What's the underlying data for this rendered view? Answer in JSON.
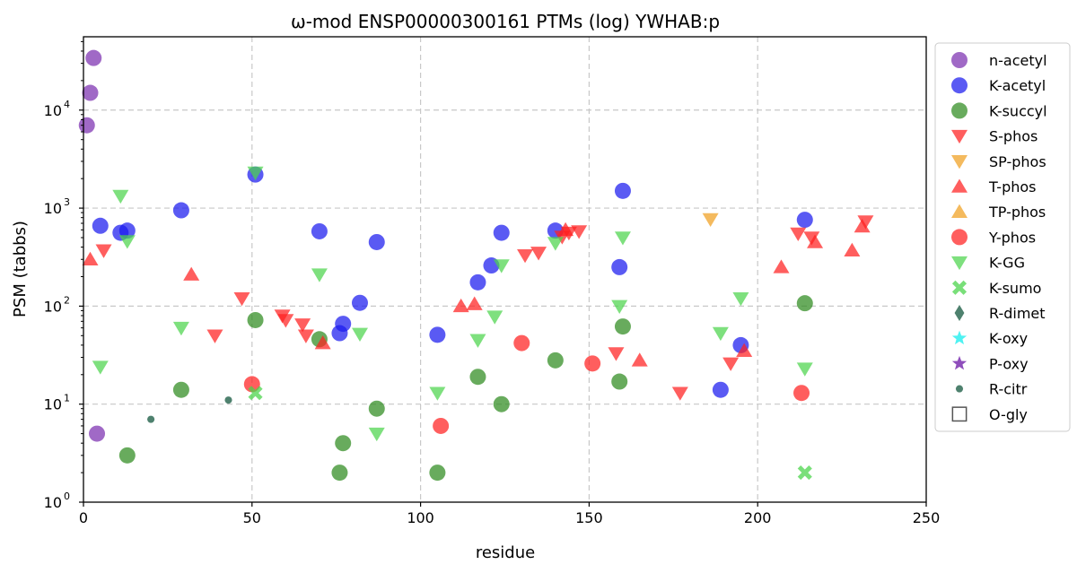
{
  "chart_data": {
    "type": "scatter",
    "title": "ω-mod ENSP00000300161 PTMs (log) YWHAB:p",
    "xlabel": "residue",
    "ylabel": "PSM (tabbs)",
    "xlim": [
      0,
      250
    ],
    "ylim": [
      1,
      56000
    ],
    "yscale": "log",
    "grid": true,
    "legend_position": "outside-right",
    "x_ticks": [
      0,
      50,
      100,
      150,
      200,
      250
    ],
    "y_ticks": [
      {
        "value": 1,
        "base": "10",
        "exp": "0"
      },
      {
        "value": 10,
        "base": "10",
        "exp": "1"
      },
      {
        "value": 100,
        "base": "10",
        "exp": "2"
      },
      {
        "value": 1000,
        "base": "10",
        "exp": "3"
      },
      {
        "value": 10000,
        "base": "10",
        "exp": "4"
      }
    ],
    "series": [
      {
        "name": "n-acetyl",
        "marker": "circle",
        "color": "#7b2fb0",
        "x": [
          1,
          2,
          3,
          4
        ],
        "y": [
          7000,
          15000,
          34000,
          5
        ]
      },
      {
        "name": "K-acetyl",
        "marker": "circle",
        "color": "#1a1aee",
        "x": [
          5,
          11,
          13,
          29,
          51,
          70,
          76,
          77,
          82,
          87,
          105,
          117,
          121,
          124,
          140,
          159,
          160,
          189,
          195,
          214
        ],
        "y": [
          660,
          560,
          590,
          950,
          2200,
          580,
          53,
          66,
          108,
          450,
          51,
          175,
          260,
          560,
          590,
          250,
          1500,
          14,
          40,
          760
        ]
      },
      {
        "name": "K-succyl",
        "marker": "circle",
        "color": "#2e8b1e",
        "x": [
          13,
          29,
          51,
          70,
          76,
          77,
          87,
          105,
          117,
          124,
          140,
          159,
          160,
          214
        ],
        "y": [
          3,
          14,
          72,
          46,
          2,
          4,
          9,
          2,
          19,
          10,
          28,
          17,
          62,
          107
        ]
      },
      {
        "name": "S-phos",
        "marker": "tri-down",
        "color": "#ff2020",
        "x": [
          6,
          39,
          47,
          59,
          60,
          65,
          66,
          131,
          135,
          142,
          144,
          147,
          158,
          177,
          192,
          212,
          216,
          232
        ],
        "y": [
          370,
          50,
          120,
          80,
          72,
          65,
          50,
          330,
          350,
          510,
          560,
          580,
          33,
          13,
          26,
          550,
          500,
          730
        ]
      },
      {
        "name": "SP-phos",
        "marker": "tri-down",
        "color": "#f0a020",
        "x": [
          186
        ],
        "y": [
          770
        ]
      },
      {
        "name": "T-phos",
        "marker": "tri-up",
        "color": "#ff2020",
        "x": [
          2,
          32,
          71,
          112,
          116,
          143,
          165,
          196,
          207,
          217,
          228,
          231
        ],
        "y": [
          300,
          210,
          42,
          100,
          105,
          600,
          28,
          35,
          250,
          450,
          370,
          650
        ]
      },
      {
        "name": "TP-phos",
        "marker": "tri-up",
        "color": "#f0a020",
        "x": [],
        "y": []
      },
      {
        "name": "Y-phos",
        "marker": "circle",
        "color": "#ff2020",
        "x": [
          50,
          106,
          130,
          151,
          213
        ],
        "y": [
          16,
          6,
          42,
          26,
          13
        ]
      },
      {
        "name": "K-GG",
        "marker": "tri-down",
        "color": "#4cd44c",
        "x": [
          5,
          11,
          13,
          29,
          51,
          70,
          82,
          87,
          105,
          117,
          122,
          124,
          140,
          159,
          160,
          189,
          195,
          214
        ],
        "y": [
          24,
          1330,
          460,
          60,
          2300,
          210,
          52,
          5,
          13,
          45,
          78,
          260,
          440,
          100,
          500,
          53,
          120,
          23
        ]
      },
      {
        "name": "K-sumo",
        "marker": "x",
        "color": "#4cd44c",
        "x": [
          51,
          214
        ],
        "y": [
          13,
          2
        ]
      },
      {
        "name": "R-dimet",
        "marker": "diamond",
        "color": "#2f6b55",
        "x": [],
        "y": []
      },
      {
        "name": "K-oxy",
        "marker": "star",
        "color": "#30f0f0",
        "x": [],
        "y": []
      },
      {
        "name": "P-oxy",
        "marker": "star",
        "color": "#7b2fb0",
        "x": [],
        "y": []
      },
      {
        "name": "R-citr",
        "marker": "small-circle",
        "color": "#2f6b55",
        "x": [
          20,
          43
        ],
        "y": [
          7,
          11
        ]
      },
      {
        "name": "O-gly",
        "marker": "square-open",
        "color": "#555555",
        "x": [],
        "y": []
      }
    ]
  }
}
